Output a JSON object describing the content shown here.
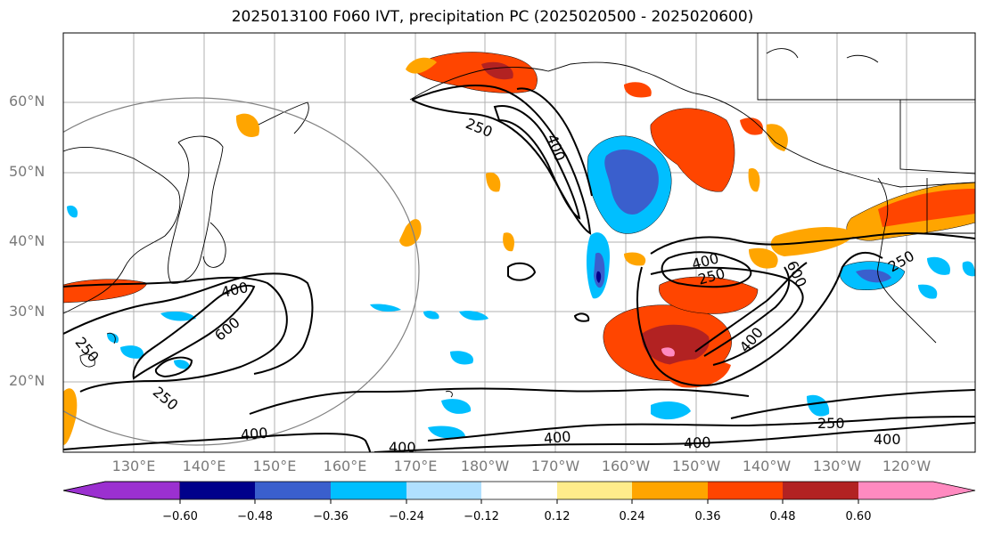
{
  "title": "2025013100 F060 IVT, precipitation PC (2025020500 - 2025020600)",
  "lat_labels": [
    "60°N",
    "50°N",
    "40°N",
    "30°N",
    "20°N"
  ],
  "lon_labels": [
    "130°E",
    "140°E",
    "150°E",
    "160°E",
    "170°E",
    "180°W",
    "170°W",
    "160°W",
    "150°W",
    "140°W",
    "130°W",
    "120°W"
  ],
  "contour_labels": [
    "250",
    "400",
    "250",
    "600",
    "400",
    "250",
    "600",
    "400",
    "250",
    "400",
    "250",
    "250",
    "400",
    "400",
    "400",
    "400",
    "400"
  ],
  "colorbar": {
    "ticks": [
      "−0.60",
      "−0.48",
      "−0.36",
      "−0.24",
      "−0.12",
      "0.12",
      "0.24",
      "0.36",
      "0.48",
      "0.60"
    ],
    "colors": [
      "#9b30d0",
      "#00008b",
      "#3a5fcd",
      "#00bfff",
      "#b0e0ff",
      "#ffffff",
      "#ffec8b",
      "#ffa500",
      "#ff4500",
      "#b22222",
      "#ff8ac0"
    ]
  }
}
